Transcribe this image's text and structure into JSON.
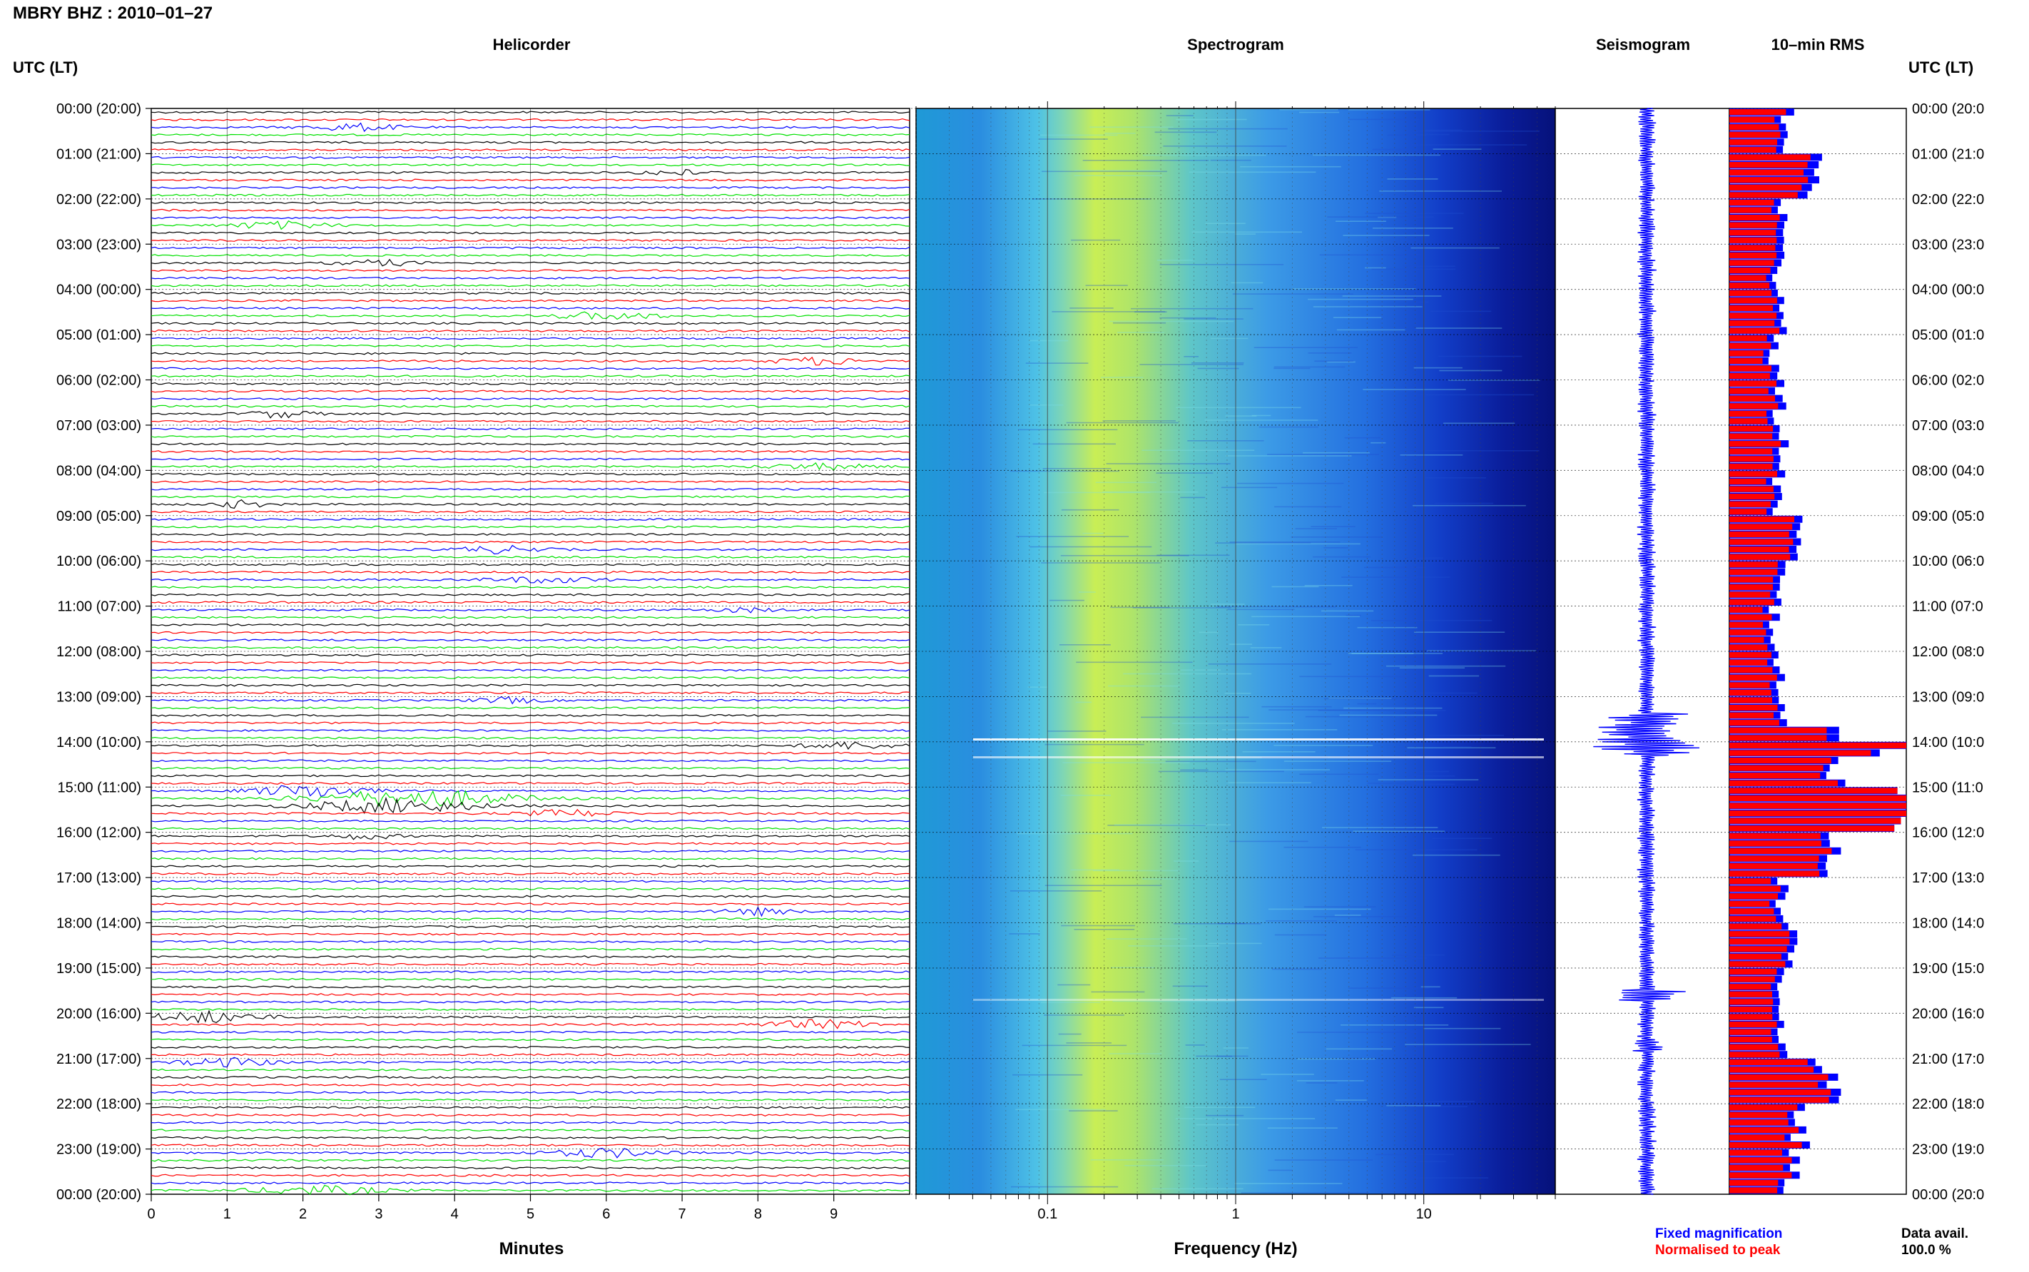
{
  "title": "MBRY BHZ : 2010–01–27",
  "time_axis_label": "UTC (LT)",
  "panels": {
    "helicorder": "Helicorder",
    "spectrogram": "Spectrogram",
    "seismogram": "Seismogram",
    "rms": "10–min RMS"
  },
  "hour_labels": [
    "00:00 (20:00)",
    "01:00 (21:00)",
    "02:00 (22:00)",
    "03:00 (23:00)",
    "04:00 (00:00)",
    "05:00 (01:00)",
    "06:00 (02:00)",
    "07:00 (03:00)",
    "08:00 (04:00)",
    "09:00 (05:00)",
    "10:00 (06:00)",
    "11:00 (07:00)",
    "12:00 (08:00)",
    "13:00 (09:00)",
    "14:00 (10:00)",
    "15:00 (11:00)",
    "16:00 (12:00)",
    "17:00 (13:00)",
    "18:00 (14:00)",
    "19:00 (15:00)",
    "20:00 (16:00)",
    "21:00 (17:00)",
    "22:00 (18:00)",
    "23:00 (19:00)",
    "00:00 (20:00)"
  ],
  "right_hour_labels": [
    "00:00 (20:0",
    "01:00 (21:0",
    "02:00 (22:0",
    "03:00 (23:0",
    "04:00 (00:0",
    "05:00 (01:0",
    "06:00 (02:0",
    "07:00 (03:0",
    "08:00 (04:0",
    "09:00 (05:0",
    "10:00 (06:0",
    "11:00 (07:0",
    "12:00 (08:0",
    "13:00 (09:0",
    "14:00 (10:0",
    "15:00 (11:0",
    "16:00 (12:0",
    "17:00 (13:0",
    "18:00 (14:0",
    "19:00 (15:0",
    "20:00 (16:0",
    "21:00 (17:0",
    "22:00 (18:0",
    "23:00 (19:0",
    "00:00 (20:0"
  ],
  "x_axis": {
    "minutes_label": "Minutes",
    "minutes_ticks": [
      "0",
      "1",
      "2",
      "3",
      "4",
      "5",
      "6",
      "7",
      "8",
      "9"
    ],
    "frequency_label": "Frequency (Hz)",
    "frequency_ticks": [
      "0.1",
      "1",
      "10"
    ]
  },
  "legend": {
    "fixed": "Fixed magnification",
    "normalised": "Normalised to peak",
    "data_avail_label": "Data avail.",
    "data_avail_value": "100.0 %"
  },
  "colors": {
    "trace_cycle": [
      "#000000",
      "#ff0000",
      "#0000ff",
      "#00e000"
    ],
    "fixed": "#0000ff",
    "normalised": "#ff0000"
  },
  "chart_data": {
    "type": "bar",
    "title": "10–min RMS",
    "categories_hours": [
      0,
      1,
      2,
      3,
      4,
      5,
      6,
      7,
      8,
      9,
      10,
      11,
      12,
      13,
      14,
      15,
      16,
      17,
      18,
      19,
      20,
      21,
      22,
      23
    ],
    "series": [
      {
        "name": "Fixed magnification",
        "values_relative": [
          0.32,
          0.48,
          0.3,
          0.28,
          0.31,
          0.26,
          0.28,
          0.3,
          0.28,
          0.36,
          0.29,
          0.25,
          0.28,
          0.3,
          0.62,
          1.0,
          0.6,
          0.3,
          0.35,
          0.3,
          0.3,
          0.55,
          0.4,
          0.35
        ]
      },
      {
        "name": "Normalised to peak",
        "values_relative": [
          0.28,
          0.42,
          0.26,
          0.24,
          0.27,
          0.22,
          0.24,
          0.26,
          0.24,
          0.32,
          0.25,
          0.21,
          0.24,
          0.26,
          0.58,
          1.0,
          0.55,
          0.26,
          0.31,
          0.26,
          0.26,
          0.5,
          0.36,
          0.31
        ]
      }
    ],
    "events": {
      "notable_hours": [
        "13:40-14:20",
        "19:55",
        "20:55"
      ]
    },
    "xlim_minutes": [
      0,
      10
    ],
    "frequency_range_hz": [
      0.02,
      50
    ],
    "frequency_scale": "log",
    "grid": true
  }
}
